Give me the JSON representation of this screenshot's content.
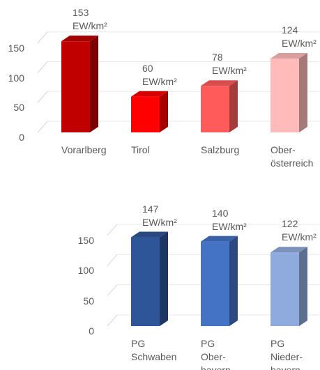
{
  "chart_data": [
    {
      "type": "bar",
      "categories": [
        "Vorarlberg",
        "Tirol",
        "Salzburg",
        "Ober-\nösterreich"
      ],
      "values": [
        153,
        60,
        78,
        124
      ],
      "value_labels": [
        "153\nEW/km²",
        "60\nEW/km²",
        "78\nEW/km²",
        "124\nEW/km²"
      ],
      "colors": [
        "#c00000",
        "#ff0000",
        "#ff5b5b",
        "#ffbaba"
      ],
      "ylim": [
        0,
        170
      ],
      "yticks": [
        0,
        50,
        100,
        150
      ],
      "grid": true
    },
    {
      "type": "bar",
      "categories": [
        "PG\nSchwaben",
        "PG\nOber-\nbayern",
        "PG\nNieder-\nbayern"
      ],
      "values": [
        147,
        140,
        122
      ],
      "value_labels": [
        "147\nEW/km²",
        "140\nEW/km²",
        "122\nEW/km²"
      ],
      "colors": [
        "#2e5597",
        "#4472c4",
        "#8faadc"
      ],
      "ylim": [
        0,
        170
      ],
      "yticks": [
        0,
        50,
        100,
        150
      ],
      "grid": true
    }
  ]
}
